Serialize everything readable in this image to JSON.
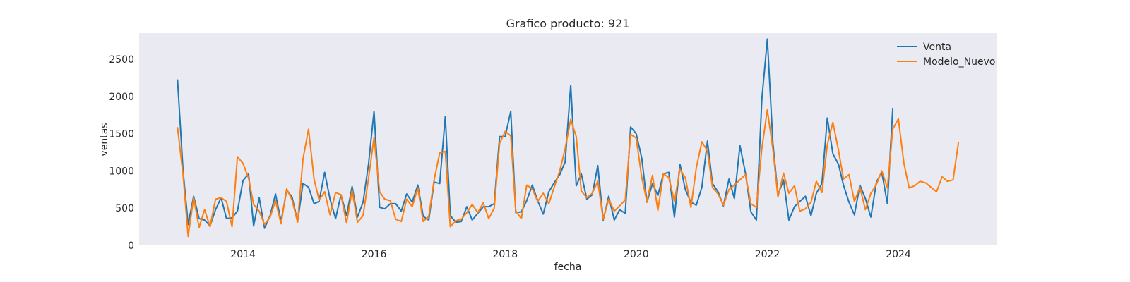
{
  "chart_data": {
    "type": "line",
    "title": "Grafico producto: 921",
    "xlabel": "fecha",
    "ylabel": "ventas",
    "ylim": [
      0,
      2850
    ],
    "yticks": [
      0,
      500,
      1000,
      1500,
      2000,
      2500
    ],
    "xlim": [
      "2012-06-01",
      "2025-07-01"
    ],
    "xticks": [
      "2014",
      "2016",
      "2018",
      "2020",
      "2022",
      "2024"
    ],
    "grid": false,
    "legend_position": "top-right",
    "start": "2013-01",
    "series": [
      {
        "name": "Venta",
        "color": "#1f77b4",
        "values": [
          2220,
          1000,
          280,
          660,
          360,
          340,
          260,
          480,
          640,
          360,
          370,
          460,
          870,
          960,
          260,
          640,
          230,
          400,
          690,
          320,
          740,
          650,
          320,
          830,
          780,
          560,
          590,
          980,
          620,
          360,
          680,
          400,
          790,
          380,
          580,
          1080,
          1800,
          510,
          490,
          560,
          560,
          460,
          690,
          580,
          810,
          390,
          340,
          850,
          830,
          1730,
          400,
          310,
          320,
          520,
          340,
          430,
          520,
          520,
          560,
          1460,
          1460,
          1800,
          440,
          450,
          600,
          810,
          600,
          420,
          720,
          840,
          950,
          1120,
          2150,
          800,
          960,
          620,
          680,
          1070,
          340,
          660,
          340,
          480,
          430,
          1590,
          1500,
          1170,
          580,
          830,
          670,
          960,
          980,
          380,
          1090,
          750,
          580,
          540,
          780,
          1400,
          830,
          720,
          530,
          890,
          630,
          1340,
          970,
          450,
          340,
          1960,
          2770,
          1370,
          680,
          880,
          340,
          520,
          590,
          660,
          400,
          700,
          830,
          1710,
          1230,
          1090,
          810,
          580,
          410,
          810,
          630,
          380,
          850,
          980,
          560,
          1840
        ]
      },
      {
        "name": "Modelo_Nuevo",
        "color": "#ff7f0e",
        "values": [
          1580,
          950,
          120,
          640,
          240,
          480,
          250,
          620,
          640,
          590,
          250,
          1190,
          1100,
          900,
          550,
          460,
          280,
          380,
          600,
          290,
          760,
          610,
          310,
          1160,
          1560,
          890,
          610,
          720,
          410,
          710,
          680,
          300,
          740,
          310,
          400,
          890,
          1450,
          720,
          620,
          600,
          350,
          320,
          620,
          520,
          770,
          320,
          390,
          880,
          1240,
          1260,
          250,
          330,
          350,
          440,
          550,
          440,
          570,
          360,
          500,
          1370,
          1530,
          1470,
          460,
          360,
          810,
          760,
          590,
          700,
          560,
          780,
          1000,
          1300,
          1690,
          1460,
          730,
          640,
          700,
          860,
          350,
          620,
          460,
          530,
          610,
          1490,
          1440,
          910,
          590,
          940,
          470,
          960,
          910,
          590,
          1020,
          910,
          510,
          1040,
          1390,
          1270,
          780,
          690,
          540,
          750,
          810,
          880,
          950,
          560,
          510,
          1300,
          1820,
          1290,
          650,
          970,
          700,
          800,
          460,
          490,
          580,
          860,
          710,
          1350,
          1650,
          1280,
          890,
          950,
          590,
          780,
          480,
          700,
          820,
          1000,
          770,
          1560,
          1700,
          1100,
          770,
          800,
          860,
          840,
          780,
          720,
          920,
          860,
          880,
          1380
        ]
      }
    ]
  }
}
